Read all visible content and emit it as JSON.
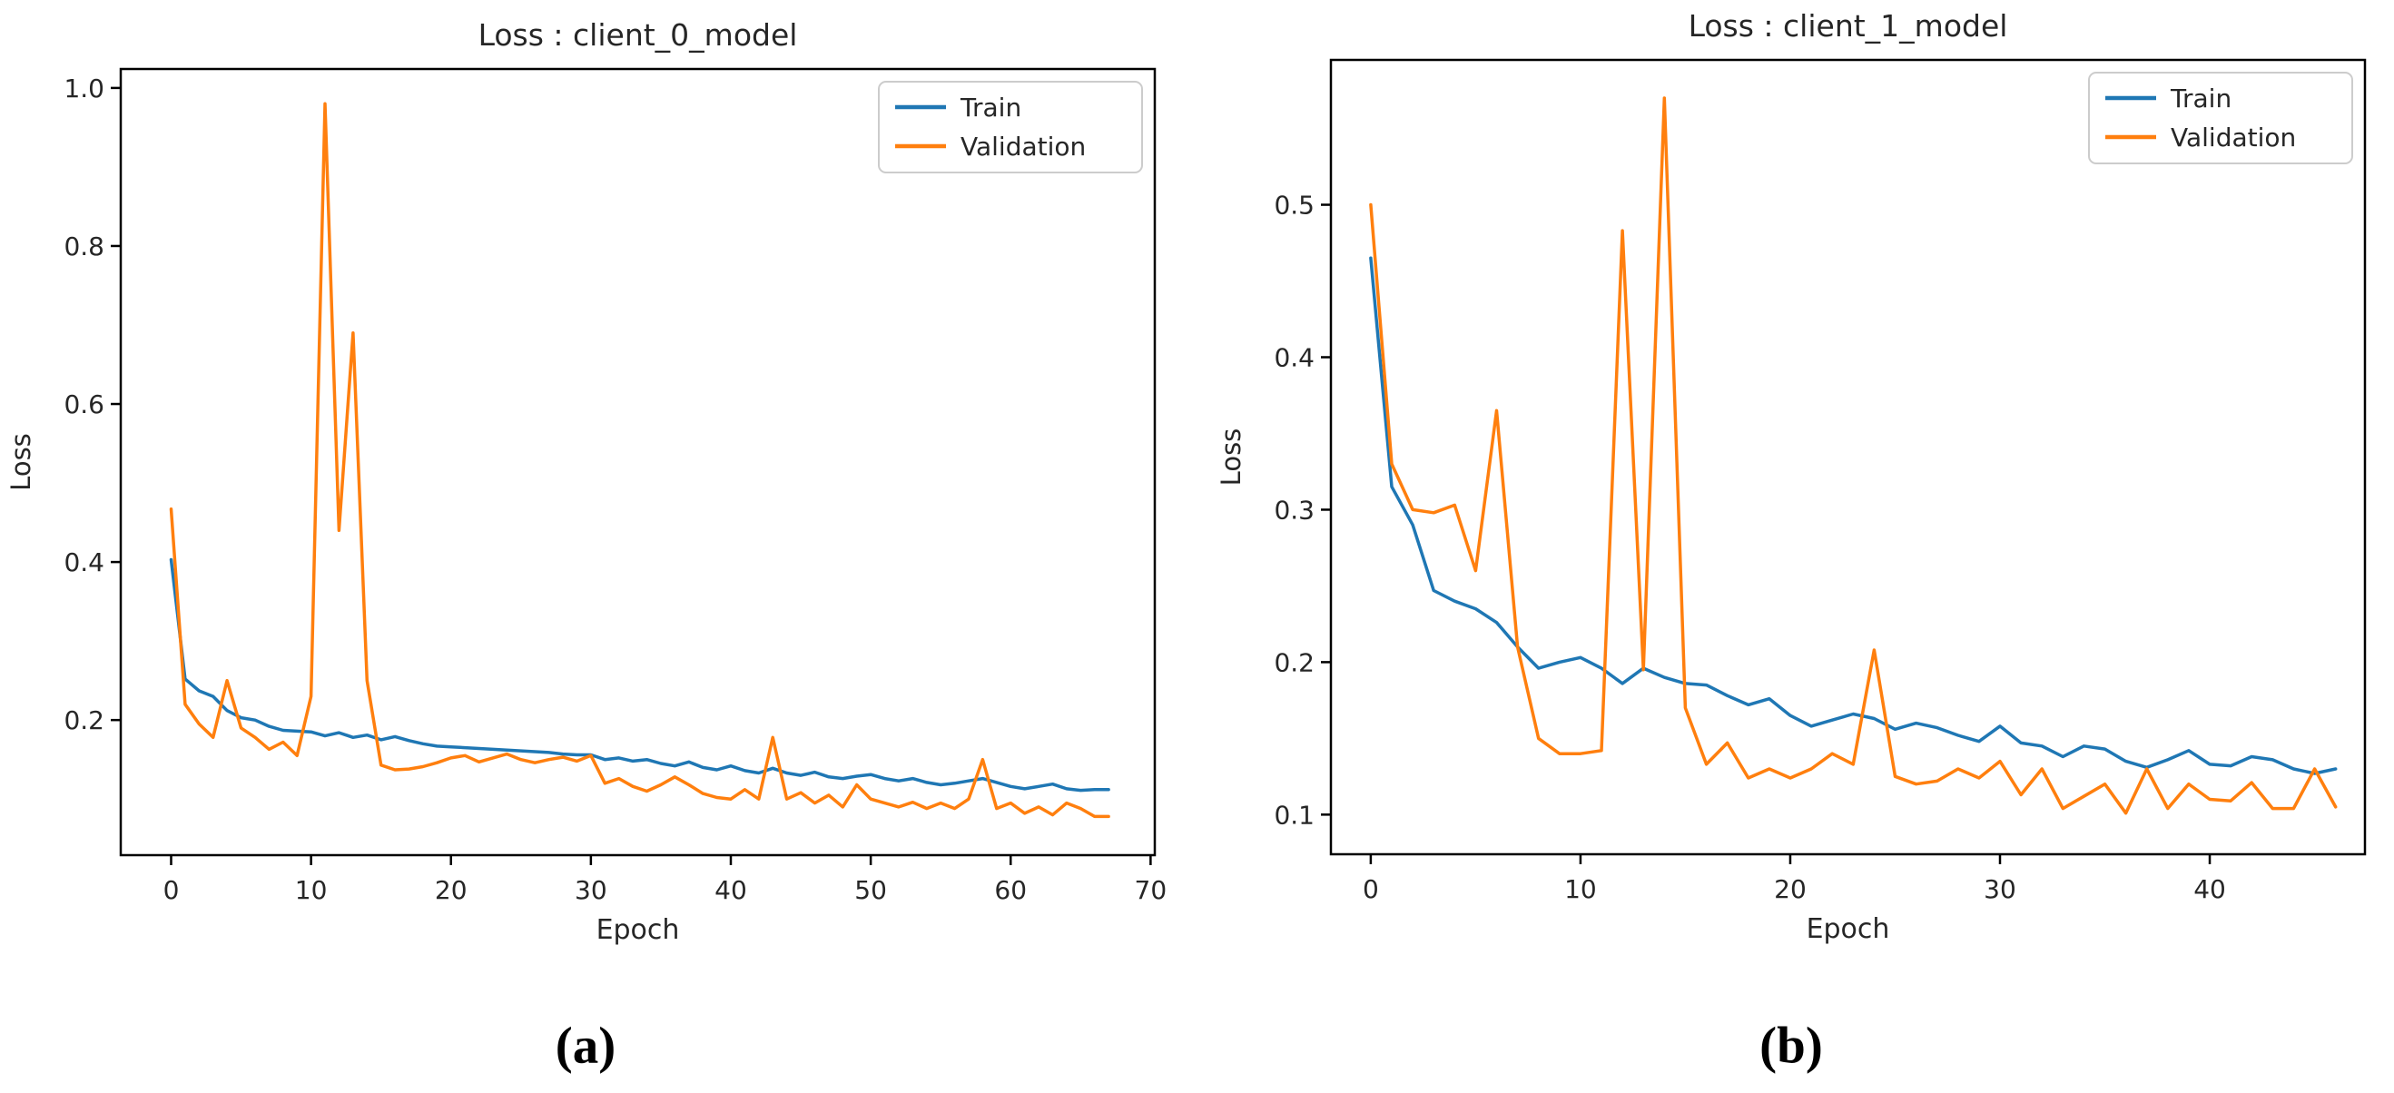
{
  "figure": {
    "background": "#ffffff",
    "captions": {
      "a": "(a)",
      "b": "(b)"
    }
  },
  "chart_data": [
    {
      "id": "client_0_model",
      "type": "line",
      "title": "Loss : client_0_model",
      "xlabel": "Epoch",
      "ylabel": "Loss",
      "xlim": [
        -3.6,
        70.3
      ],
      "ylim": [
        0.029,
        1.024
      ],
      "xticks": [
        0,
        10,
        20,
        30,
        40,
        50,
        60,
        70
      ],
      "yticks": [
        0.2,
        0.4,
        0.6,
        0.8,
        1.0
      ],
      "grid": false,
      "legend_position": "top-right",
      "x": [
        0,
        1,
        2,
        3,
        4,
        5,
        6,
        7,
        8,
        9,
        10,
        11,
        12,
        13,
        14,
        15,
        16,
        17,
        18,
        19,
        20,
        21,
        22,
        23,
        24,
        25,
        26,
        27,
        28,
        29,
        30,
        31,
        32,
        33,
        34,
        35,
        36,
        37,
        38,
        39,
        40,
        41,
        42,
        43,
        44,
        45,
        46,
        47,
        48,
        49,
        50,
        51,
        52,
        53,
        54,
        55,
        56,
        57,
        58,
        59,
        60,
        61,
        62,
        63,
        64,
        65,
        66,
        67
      ],
      "series": [
        {
          "name": "Train",
          "color": "#1f77b4",
          "values": [
            0.403,
            0.252,
            0.237,
            0.23,
            0.212,
            0.203,
            0.2,
            0.192,
            0.187,
            0.186,
            0.185,
            0.18,
            0.184,
            0.178,
            0.181,
            0.175,
            0.179,
            0.174,
            0.17,
            0.167,
            0.166,
            0.165,
            0.164,
            0.163,
            0.162,
            0.161,
            0.16,
            0.159,
            0.157,
            0.156,
            0.156,
            0.15,
            0.152,
            0.148,
            0.15,
            0.145,
            0.142,
            0.147,
            0.14,
            0.137,
            0.142,
            0.136,
            0.133,
            0.139,
            0.133,
            0.13,
            0.134,
            0.128,
            0.126,
            0.129,
            0.131,
            0.126,
            0.123,
            0.126,
            0.121,
            0.118,
            0.12,
            0.123,
            0.126,
            0.121,
            0.116,
            0.113,
            0.116,
            0.119,
            0.113,
            0.111,
            0.112,
            0.112
          ]
        },
        {
          "name": "Validation",
          "color": "#ff7f0e",
          "values": [
            0.467,
            0.22,
            0.195,
            0.178,
            0.25,
            0.19,
            0.178,
            0.163,
            0.172,
            0.155,
            0.23,
            0.98,
            0.44,
            0.69,
            0.25,
            0.143,
            0.137,
            0.138,
            0.141,
            0.146,
            0.152,
            0.155,
            0.147,
            0.152,
            0.157,
            0.15,
            0.146,
            0.15,
            0.153,
            0.148,
            0.155,
            0.12,
            0.126,
            0.116,
            0.11,
            0.118,
            0.128,
            0.118,
            0.107,
            0.102,
            0.1,
            0.112,
            0.1,
            0.178,
            0.1,
            0.108,
            0.095,
            0.105,
            0.09,
            0.118,
            0.1,
            0.095,
            0.09,
            0.096,
            0.088,
            0.095,
            0.088,
            0.1,
            0.15,
            0.088,
            0.095,
            0.082,
            0.09,
            0.08,
            0.095,
            0.088,
            0.078,
            0.078
          ]
        }
      ]
    },
    {
      "id": "client_1_model",
      "type": "line",
      "title": "Loss : client_1_model",
      "xlabel": "Epoch",
      "ylabel": "Loss",
      "xlim": [
        -1.9,
        47.4
      ],
      "ylim": [
        0.074,
        0.595
      ],
      "xticks": [
        0,
        10,
        20,
        30,
        40
      ],
      "yticks": [
        0.1,
        0.2,
        0.3,
        0.4,
        0.5
      ],
      "grid": false,
      "legend_position": "top-right",
      "x": [
        0,
        1,
        2,
        3,
        4,
        5,
        6,
        7,
        8,
        9,
        10,
        11,
        12,
        13,
        14,
        15,
        16,
        17,
        18,
        19,
        20,
        21,
        22,
        23,
        24,
        25,
        26,
        27,
        28,
        29,
        30,
        31,
        32,
        33,
        34,
        35,
        36,
        37,
        38,
        39,
        40,
        41,
        42,
        43,
        44,
        45,
        46
      ],
      "series": [
        {
          "name": "Train",
          "color": "#1f77b4",
          "values": [
            0.465,
            0.315,
            0.29,
            0.247,
            0.24,
            0.235,
            0.226,
            0.21,
            0.196,
            0.2,
            0.203,
            0.196,
            0.186,
            0.196,
            0.19,
            0.186,
            0.185,
            0.178,
            0.172,
            0.176,
            0.165,
            0.158,
            0.162,
            0.166,
            0.163,
            0.156,
            0.16,
            0.157,
            0.152,
            0.148,
            0.158,
            0.147,
            0.145,
            0.138,
            0.145,
            0.143,
            0.135,
            0.131,
            0.136,
            0.142,
            0.133,
            0.132,
            0.138,
            0.136,
            0.13,
            0.127,
            0.13
          ]
        },
        {
          "name": "Validation",
          "color": "#ff7f0e",
          "values": [
            0.5,
            0.33,
            0.3,
            0.298,
            0.303,
            0.26,
            0.365,
            0.21,
            0.15,
            0.14,
            0.14,
            0.142,
            0.483,
            0.195,
            0.57,
            0.17,
            0.133,
            0.147,
            0.124,
            0.13,
            0.124,
            0.13,
            0.14,
            0.133,
            0.208,
            0.125,
            0.12,
            0.122,
            0.13,
            0.124,
            0.135,
            0.113,
            0.13,
            0.104,
            0.112,
            0.12,
            0.101,
            0.13,
            0.104,
            0.12,
            0.11,
            0.109,
            0.121,
            0.104,
            0.104,
            0.13,
            0.105
          ]
        }
      ]
    }
  ]
}
